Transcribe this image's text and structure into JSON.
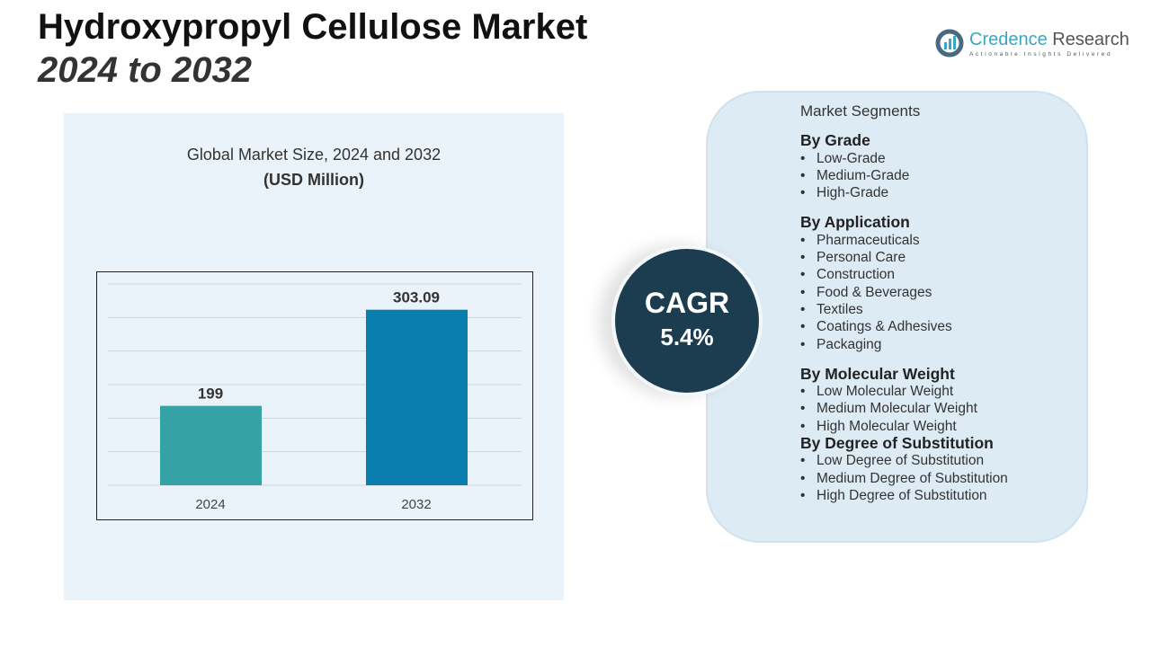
{
  "title": "Hydroxypropyl Cellulose Market",
  "subtitle": "2024 to 2032",
  "logo": {
    "name1": "Credence",
    "name2": "Research",
    "tagline": "Actionable Insights Delivered"
  },
  "chart_data": {
    "type": "bar",
    "title": "Global Market Size, 2024 and 2032",
    "subtitle": "(USD Million)",
    "categories": [
      "2024",
      "2032"
    ],
    "values": [
      199,
      303.09
    ],
    "value_labels": [
      "199",
      "303.09"
    ],
    "colors": [
      "#35a2a5",
      "#0a7daf"
    ],
    "ylim": [
      113,
      331
    ],
    "grid": true
  },
  "cagr": {
    "label": "CAGR",
    "value": "5.4%"
  },
  "segments": {
    "heading": "Market Segments",
    "groups": [
      {
        "title": "By Grade",
        "items": [
          "Low-Grade",
          "Medium-Grade",
          "High-Grade"
        ]
      },
      {
        "title": "By Application",
        "items": [
          "Pharmaceuticals",
          "Personal Care",
          "Construction",
          "Food & Beverages",
          "Textiles",
          "Coatings & Adhesives",
          "Packaging"
        ]
      },
      {
        "title": "By Molecular Weight",
        "items": [
          "Low Molecular Weight",
          "Medium Molecular Weight",
          "High Molecular Weight"
        ]
      },
      {
        "title": "By Degree of Substitution",
        "items": [
          "Low Degree of Substitution",
          "Medium Degree of Substitution",
          "High Degree of Substitution"
        ]
      }
    ]
  }
}
